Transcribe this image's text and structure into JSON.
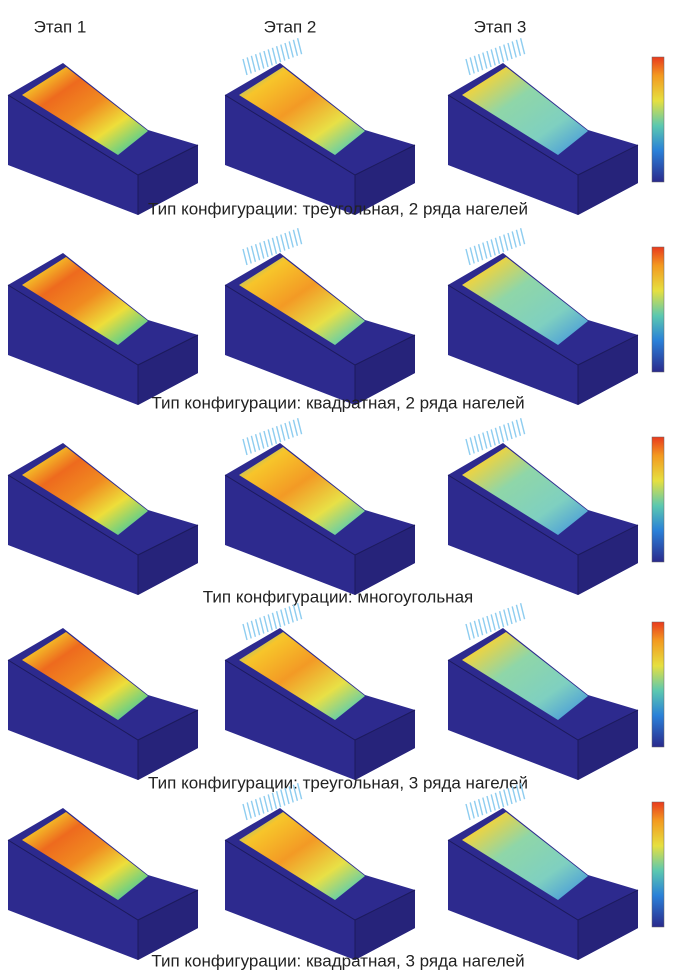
{
  "header": {
    "stages": [
      "Этап 1",
      "Этап 2",
      "Этап 3"
    ]
  },
  "rows": [
    {
      "caption": "Тип конфигурации: треугольная, 2 ряда нагелей"
    },
    {
      "caption": "Тип конфигурации: квадратная, 2 ряда нагелей"
    },
    {
      "caption": "Тип конфигурации: многоугольная"
    },
    {
      "caption": "Тип конфигурации: треугольная, 3 ряда нагелей"
    },
    {
      "caption": "Тип конфигурации: квадратная, 3 ряда нагелей"
    }
  ]
}
